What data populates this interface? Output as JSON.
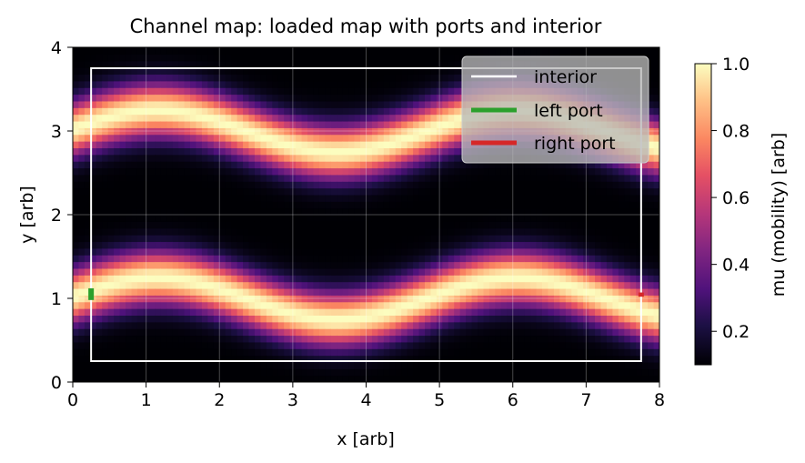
{
  "chart_data": {
    "type": "heatmap",
    "title": "Channel map: loaded map with ports and interior",
    "xlabel": "x [arb]",
    "ylabel": "y [arb]",
    "xlim": [
      0,
      8
    ],
    "ylim": [
      0,
      4
    ],
    "xticks": [
      "0",
      "1",
      "2",
      "3",
      "4",
      "5",
      "6",
      "7",
      "8"
    ],
    "yticks": [
      "0",
      "1",
      "2",
      "3",
      "4"
    ],
    "grid": true,
    "colormap": "magma",
    "colorbar": {
      "label": "mu (mobility) [arb]",
      "range": [
        0.1,
        1.0
      ],
      "ticks": [
        "0.2",
        "0.4",
        "0.6",
        "0.8",
        "1.0"
      ]
    },
    "channels": [
      {
        "center_y": 1.0,
        "amplitude": 0.25,
        "wavelength": 4.9,
        "peak_x": 1.15,
        "width": 0.22
      },
      {
        "center_y": 3.0,
        "amplitude": 0.25,
        "wavelength": 4.9,
        "peak_x": 1.15,
        "width": 0.22
      }
    ],
    "interior": {
      "x": [
        0.25,
        7.75
      ],
      "y": [
        0.25,
        3.75
      ]
    },
    "left_port": {
      "x": 0.25,
      "y": [
        0.98,
        1.12
      ]
    },
    "right_port": {
      "x": 7.75,
      "y": [
        1.02,
        1.07
      ]
    },
    "legend": {
      "position": "top-right",
      "entries": [
        {
          "label": "interior",
          "color": "#ffffff"
        },
        {
          "label": "left port",
          "color": "#2ca02c"
        },
        {
          "label": "right port",
          "color": "#d62728"
        }
      ]
    }
  }
}
